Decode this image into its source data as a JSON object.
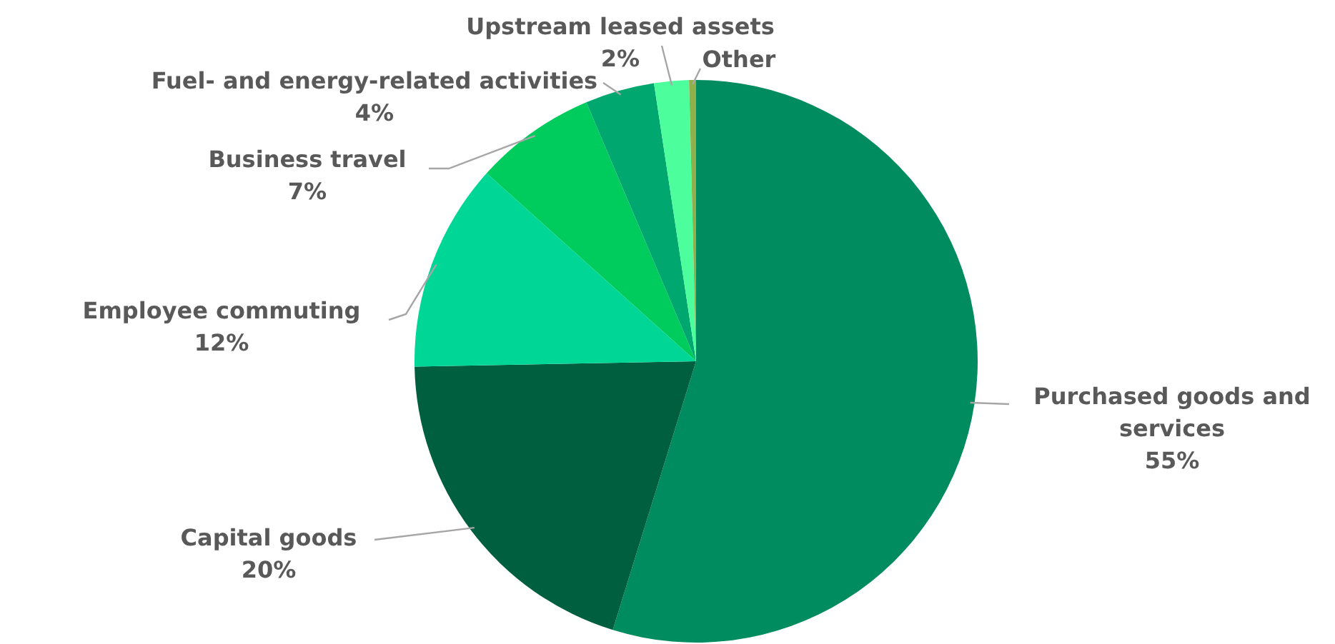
{
  "chart_data": {
    "type": "pie",
    "categories": [
      "Purchased goods and services",
      "Capital goods",
      "Employee commuting",
      "Business travel",
      "Fuel- and energy-related activities",
      "Upstream leased assets",
      "Other"
    ],
    "values": [
      55,
      20,
      12,
      7,
      4,
      2,
      0.4
    ],
    "value_labels": [
      "55%",
      "20%",
      "12%",
      "7%",
      "4%",
      "2%",
      null
    ],
    "colors": [
      "#008c5e",
      "#005f3f",
      "#00d696",
      "#00cc5e",
      "#00a870",
      "#4dff9c",
      "#8fb04a"
    ]
  }
}
